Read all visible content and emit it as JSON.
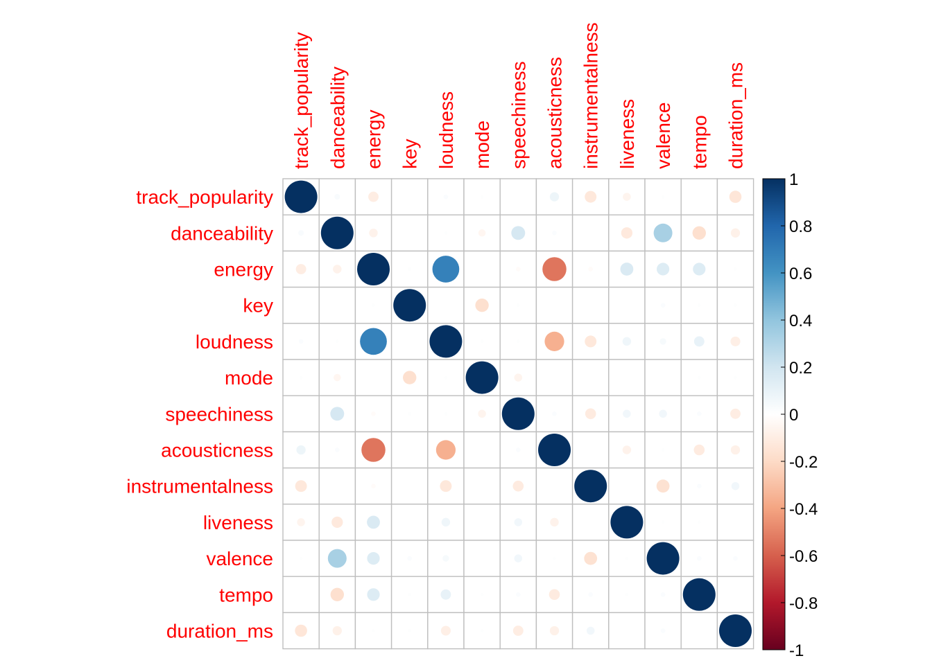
{
  "chart_data": {
    "type": "heatmap",
    "variables": [
      "track_popularity",
      "danceability",
      "energy",
      "key",
      "loudness",
      "mode",
      "speechiness",
      "acousticness",
      "instrumentalness",
      "liveness",
      "valence",
      "tempo",
      "duration_ms"
    ],
    "matrix": [
      [
        1.0,
        0.03,
        -0.1,
        0.0,
        0.02,
        0.01,
        0.0,
        0.08,
        -0.13,
        -0.06,
        0.01,
        0.0,
        -0.14
      ],
      [
        0.03,
        1.0,
        -0.07,
        0.0,
        0.01,
        -0.05,
        0.18,
        0.02,
        0.0,
        -0.12,
        0.33,
        -0.17,
        -0.08
      ],
      [
        -0.1,
        -0.07,
        1.0,
        0.01,
        0.68,
        0.0,
        -0.02,
        -0.54,
        -0.02,
        0.16,
        0.15,
        0.15,
        0.01
      ],
      [
        0.0,
        0.0,
        0.01,
        1.0,
        0.0,
        -0.17,
        0.01,
        0.0,
        0.0,
        0.0,
        0.02,
        0.01,
        0.01
      ],
      [
        0.02,
        0.01,
        0.68,
        0.0,
        1.0,
        0.01,
        0.01,
        -0.36,
        -0.13,
        0.07,
        0.04,
        0.1,
        -0.09
      ],
      [
        0.01,
        -0.05,
        0.0,
        -0.17,
        0.01,
        1.0,
        -0.06,
        0.0,
        0.0,
        0.0,
        0.0,
        0.01,
        0.01
      ],
      [
        0.0,
        0.18,
        -0.02,
        0.01,
        0.01,
        -0.06,
        1.0,
        0.02,
        -0.11,
        0.06,
        0.06,
        0.02,
        -0.1
      ],
      [
        0.08,
        0.02,
        -0.54,
        0.0,
        -0.36,
        0.0,
        0.02,
        1.0,
        0.0,
        -0.07,
        0.01,
        -0.11,
        -0.08
      ],
      [
        -0.13,
        0.0,
        -0.02,
        0.0,
        -0.13,
        0.0,
        -0.11,
        0.0,
        1.0,
        0.0,
        -0.16,
        0.02,
        0.06
      ],
      [
        -0.06,
        -0.12,
        0.16,
        0.0,
        0.07,
        0.0,
        0.06,
        -0.07,
        0.0,
        1.0,
        0.01,
        0.01,
        0.0
      ],
      [
        0.01,
        0.33,
        0.15,
        0.02,
        0.04,
        0.0,
        0.06,
        0.01,
        -0.16,
        0.01,
        1.0,
        0.02,
        0.02
      ],
      [
        0.0,
        -0.17,
        0.15,
        0.01,
        0.1,
        0.01,
        0.02,
        -0.11,
        0.02,
        0.01,
        0.02,
        1.0,
        0.0
      ],
      [
        -0.14,
        -0.08,
        0.01,
        0.01,
        -0.09,
        0.01,
        -0.1,
        -0.08,
        0.06,
        0.0,
        0.02,
        0.0,
        1.0
      ]
    ],
    "legend": {
      "tick_labels": [
        "1",
        "0.8",
        "0.6",
        "0.4",
        "0.2",
        "0",
        "-0.2",
        "-0.4",
        "-0.6",
        "-0.8",
        "-1"
      ],
      "tick_values": [
        1,
        0.8,
        0.6,
        0.4,
        0.2,
        0,
        -0.2,
        -0.4,
        -0.6,
        -0.8,
        -1
      ],
      "range": [
        -1,
        1
      ],
      "placement": "right"
    },
    "label_color": "#ff0000",
    "grid_color": "#bebebe",
    "color_scale": [
      "#67001f",
      "#b2182b",
      "#d6604d",
      "#f4a582",
      "#fddbc7",
      "#ffffff",
      "#d1e5f0",
      "#92c5de",
      "#4393c3",
      "#2166ac",
      "#053061"
    ],
    "grid": true
  }
}
